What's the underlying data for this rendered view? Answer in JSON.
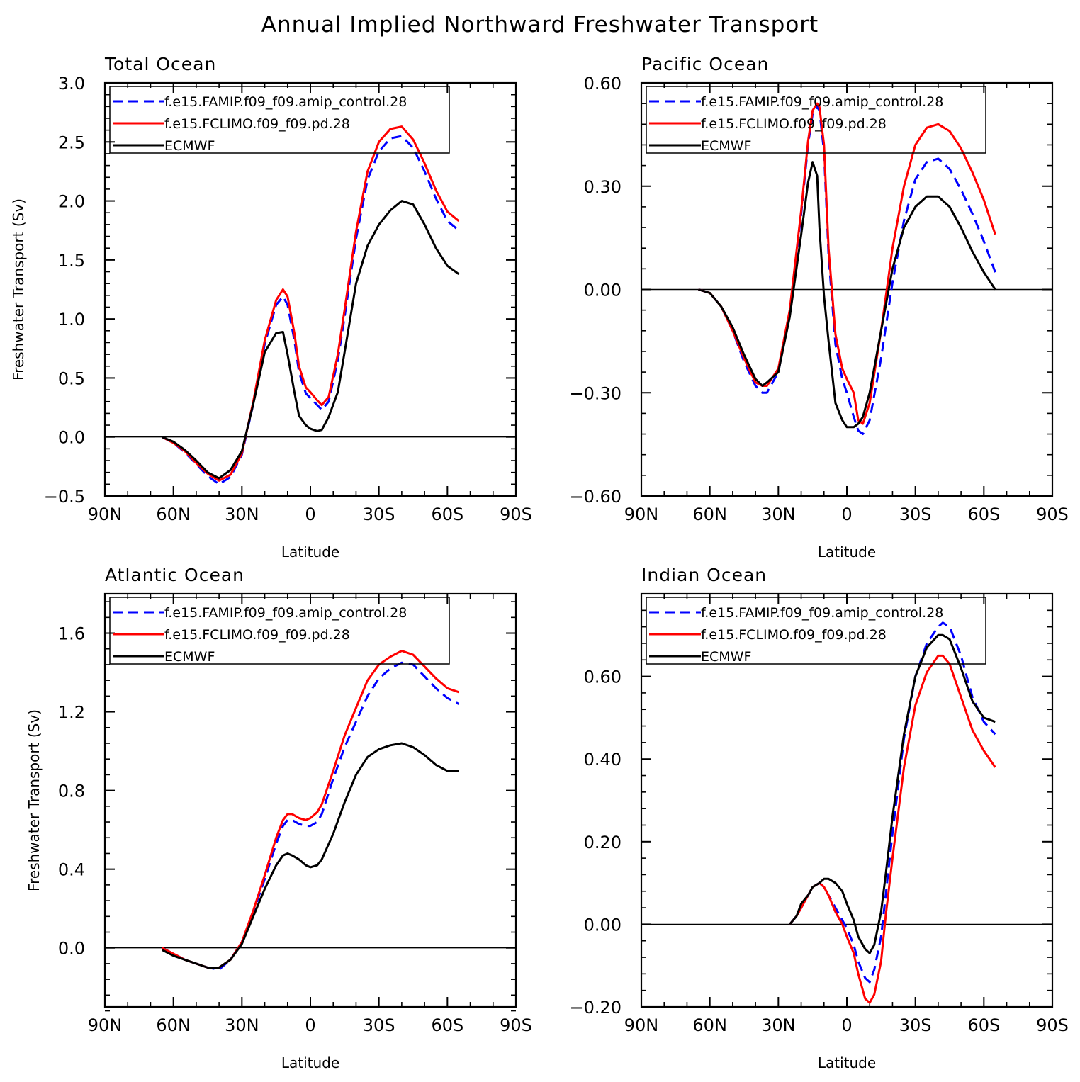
{
  "title": "Annual Implied Northward Freshwater Transport",
  "colors": {
    "amip": "#0000ff",
    "fclimo": "#ff0000",
    "ecmwf": "#000000"
  },
  "chart_data": [
    {
      "type": "line",
      "title": "Total Ocean",
      "xlabel": "Latitude",
      "ylabel": "Freshwater Transport (Sv)",
      "xlim": [
        90,
        -90
      ],
      "ylim": [
        -0.5,
        3.0
      ],
      "xticks": [
        90,
        60,
        30,
        0,
        -30,
        -60,
        -90
      ],
      "xtick_labels": [
        "90N",
        "60N",
        "30N",
        "0",
        "30S",
        "60S",
        "90S"
      ],
      "yticks": [
        -0.5,
        0.0,
        0.5,
        1.0,
        1.5,
        2.0,
        2.5,
        3.0
      ],
      "ytick_labels": [
        "-0.5",
        "0.0",
        "0.5",
        "1.0",
        "1.5",
        "2.0",
        "2.5",
        "3.0"
      ],
      "legend": "top-left",
      "series": [
        {
          "name": "f.e15.FAMIP.f09_f09.amip_control.28",
          "color": "#0000ff",
          "style": "dashed",
          "x": [
            65,
            60,
            55,
            50,
            45,
            40,
            35,
            30,
            25,
            20,
            15,
            12,
            10,
            7,
            5,
            2,
            0,
            -3,
            -5,
            -8,
            -12,
            -15,
            -20,
            -25,
            -30,
            -35,
            -40,
            -45,
            -50,
            -55,
            -60,
            -65
          ],
          "y": [
            0.0,
            -0.05,
            -0.13,
            -0.23,
            -0.33,
            -0.4,
            -0.34,
            -0.15,
            0.28,
            0.79,
            1.12,
            1.19,
            1.12,
            0.82,
            0.55,
            0.37,
            0.33,
            0.27,
            0.23,
            0.3,
            0.65,
            1.02,
            1.68,
            2.18,
            2.42,
            2.53,
            2.55,
            2.45,
            2.25,
            2.02,
            1.83,
            1.75
          ]
        },
        {
          "name": "f.e15.FCLIMO.f09_f09.pd.28",
          "color": "#ff0000",
          "style": "solid",
          "x": [
            65,
            60,
            55,
            50,
            45,
            40,
            35,
            30,
            25,
            20,
            15,
            12,
            10,
            7,
            5,
            2,
            0,
            -3,
            -5,
            -8,
            -12,
            -15,
            -20,
            -25,
            -30,
            -35,
            -40,
            -45,
            -50,
            -55,
            -60,
            -65
          ],
          "y": [
            0.0,
            -0.05,
            -0.12,
            -0.22,
            -0.31,
            -0.37,
            -0.32,
            -0.14,
            0.3,
            0.82,
            1.16,
            1.25,
            1.19,
            0.88,
            0.6,
            0.42,
            0.38,
            0.31,
            0.27,
            0.34,
            0.7,
            1.08,
            1.74,
            2.25,
            2.5,
            2.61,
            2.63,
            2.52,
            2.32,
            2.09,
            1.91,
            1.83
          ]
        },
        {
          "name": "ECMWF",
          "color": "#000000",
          "style": "solid",
          "x": [
            65,
            60,
            55,
            50,
            45,
            40,
            35,
            30,
            25,
            20,
            15,
            12,
            10,
            7,
            5,
            2,
            0,
            -3,
            -5,
            -8,
            -12,
            -15,
            -20,
            -25,
            -30,
            -35,
            -40,
            -45,
            -50,
            -55,
            -60,
            -65
          ],
          "y": [
            0.0,
            -0.04,
            -0.11,
            -0.2,
            -0.3,
            -0.35,
            -0.28,
            -0.12,
            0.28,
            0.72,
            0.88,
            0.89,
            0.7,
            0.38,
            0.18,
            0.1,
            0.07,
            0.05,
            0.06,
            0.17,
            0.38,
            0.72,
            1.3,
            1.62,
            1.8,
            1.92,
            2.0,
            1.97,
            1.8,
            1.6,
            1.45,
            1.38
          ]
        }
      ]
    },
    {
      "type": "line",
      "title": "Pacific Ocean",
      "xlabel": "Latitude",
      "ylabel": "",
      "xlim": [
        90,
        -90
      ],
      "ylim": [
        -0.6,
        0.6
      ],
      "xticks": [
        90,
        60,
        30,
        0,
        -30,
        -60,
        -90
      ],
      "xtick_labels": [
        "90N",
        "60N",
        "30N",
        "0",
        "30S",
        "60S",
        "90S"
      ],
      "yticks": [
        -0.6,
        -0.3,
        0.0,
        0.3,
        0.6
      ],
      "ytick_labels": [
        "-0.60",
        "-0.30",
        "0.00",
        "0.30",
        "0.60"
      ],
      "legend": "top-left",
      "series": [
        {
          "name": "f.e15.FAMIP.f09_f09.amip_control.28",
          "color": "#0000ff",
          "style": "dashed",
          "x": [
            65,
            60,
            55,
            50,
            45,
            40,
            37,
            35,
            30,
            25,
            20,
            17,
            15,
            13,
            12,
            10,
            8,
            5,
            2,
            0,
            -3,
            -5,
            -7,
            -10,
            -15,
            -20,
            -25,
            -30,
            -35,
            -40,
            -45,
            -50,
            -55,
            -60,
            -65
          ],
          "y": [
            0.0,
            -0.01,
            -0.05,
            -0.12,
            -0.21,
            -0.28,
            -0.3,
            -0.3,
            -0.24,
            -0.07,
            0.22,
            0.42,
            0.51,
            0.53,
            0.52,
            0.4,
            0.1,
            -0.16,
            -0.26,
            -0.3,
            -0.37,
            -0.41,
            -0.42,
            -0.38,
            -0.2,
            0.02,
            0.2,
            0.32,
            0.37,
            0.38,
            0.35,
            0.29,
            0.22,
            0.14,
            0.05
          ]
        },
        {
          "name": "f.e15.FCLIMO.f09_f09.pd.28",
          "color": "#ff0000",
          "style": "solid",
          "x": [
            65,
            60,
            55,
            50,
            45,
            40,
            37,
            35,
            30,
            25,
            20,
            17,
            15,
            13,
            12,
            10,
            8,
            5,
            2,
            0,
            -3,
            -5,
            -7,
            -10,
            -15,
            -20,
            -25,
            -30,
            -35,
            -40,
            -45,
            -50,
            -55,
            -60,
            -65
          ],
          "y": [
            0.0,
            -0.01,
            -0.05,
            -0.12,
            -0.2,
            -0.27,
            -0.28,
            -0.28,
            -0.23,
            -0.06,
            0.23,
            0.43,
            0.52,
            0.54,
            0.53,
            0.42,
            0.12,
            -0.13,
            -0.23,
            -0.26,
            -0.3,
            -0.38,
            -0.39,
            -0.33,
            -0.12,
            0.12,
            0.3,
            0.42,
            0.47,
            0.48,
            0.46,
            0.41,
            0.34,
            0.26,
            0.16
          ]
        },
        {
          "name": "ECMWF",
          "color": "#000000",
          "style": "solid",
          "x": [
            65,
            60,
            55,
            50,
            45,
            40,
            37,
            35,
            30,
            25,
            20,
            17,
            15,
            13,
            12,
            10,
            8,
            5,
            2,
            0,
            -3,
            -5,
            -7,
            -10,
            -15,
            -20,
            -25,
            -30,
            -35,
            -40,
            -45,
            -50,
            -55,
            -60,
            -65
          ],
          "y": [
            0.0,
            -0.01,
            -0.05,
            -0.11,
            -0.19,
            -0.26,
            -0.28,
            -0.27,
            -0.24,
            -0.08,
            0.16,
            0.31,
            0.37,
            0.33,
            0.18,
            -0.02,
            -0.15,
            -0.33,
            -0.38,
            -0.4,
            -0.4,
            -0.39,
            -0.37,
            -0.3,
            -0.12,
            0.06,
            0.18,
            0.24,
            0.27,
            0.27,
            0.24,
            0.18,
            0.11,
            0.05,
            0.0
          ]
        }
      ]
    },
    {
      "type": "line",
      "title": "Atlantic Ocean",
      "xlabel": "Latitude",
      "ylabel": "Freshwater Transport (Sv)",
      "xlim": [
        90,
        -90
      ],
      "ylim": [
        -0.3,
        1.8
      ],
      "xticks": [
        90,
        60,
        30,
        0,
        -30,
        -60,
        -90
      ],
      "xtick_labels": [
        "90N",
        "60N",
        "30N",
        "0",
        "30S",
        "60S",
        "90S"
      ],
      "yticks": [
        0.0,
        0.4,
        0.8,
        1.2,
        1.6
      ],
      "ytick_labels": [
        "0.0",
        "0.4",
        "0.8",
        "1.2",
        "1.6"
      ],
      "legend": "top-left",
      "series": [
        {
          "name": "f.e15.FAMIP.f09_f09.amip_control.28",
          "color": "#0000ff",
          "style": "dashed",
          "x": [
            65,
            60,
            55,
            50,
            45,
            40,
            35,
            30,
            25,
            20,
            15,
            12,
            10,
            8,
            5,
            2,
            0,
            -3,
            -5,
            -10,
            -15,
            -20,
            -25,
            -30,
            -35,
            -40,
            -45,
            -50,
            -55,
            -60,
            -65
          ],
          "y": [
            0.0,
            -0.03,
            -0.06,
            -0.08,
            -0.1,
            -0.11,
            -0.06,
            0.03,
            0.18,
            0.35,
            0.53,
            0.62,
            0.65,
            0.65,
            0.63,
            0.62,
            0.62,
            0.64,
            0.68,
            0.86,
            1.02,
            1.15,
            1.28,
            1.37,
            1.42,
            1.45,
            1.44,
            1.38,
            1.32,
            1.27,
            1.24
          ]
        },
        {
          "name": "f.e15.FCLIMO.f09_f09.pd.28",
          "color": "#ff0000",
          "style": "solid",
          "x": [
            65,
            60,
            55,
            50,
            45,
            40,
            35,
            30,
            25,
            20,
            15,
            12,
            10,
            8,
            5,
            2,
            0,
            -3,
            -5,
            -10,
            -15,
            -20,
            -25,
            -30,
            -35,
            -40,
            -45,
            -50,
            -55,
            -60,
            -65
          ],
          "y": [
            0.0,
            -0.03,
            -0.06,
            -0.08,
            -0.1,
            -0.1,
            -0.06,
            0.03,
            0.19,
            0.37,
            0.56,
            0.65,
            0.68,
            0.68,
            0.66,
            0.65,
            0.66,
            0.69,
            0.73,
            0.9,
            1.08,
            1.22,
            1.36,
            1.44,
            1.48,
            1.51,
            1.49,
            1.43,
            1.37,
            1.32,
            1.3
          ]
        },
        {
          "name": "ECMWF",
          "color": "#000000",
          "style": "solid",
          "x": [
            65,
            60,
            55,
            50,
            45,
            40,
            35,
            30,
            25,
            20,
            15,
            12,
            10,
            8,
            5,
            2,
            0,
            -3,
            -5,
            -10,
            -15,
            -20,
            -25,
            -30,
            -35,
            -40,
            -45,
            -50,
            -55,
            -60,
            -65
          ],
          "y": [
            -0.01,
            -0.04,
            -0.06,
            -0.08,
            -0.1,
            -0.1,
            -0.06,
            0.02,
            0.16,
            0.3,
            0.42,
            0.47,
            0.48,
            0.47,
            0.45,
            0.42,
            0.41,
            0.42,
            0.45,
            0.58,
            0.74,
            0.88,
            0.97,
            1.01,
            1.03,
            1.04,
            1.02,
            0.98,
            0.93,
            0.9,
            0.9
          ]
        }
      ]
    },
    {
      "type": "line",
      "title": "Indian Ocean",
      "xlabel": "Latitude",
      "ylabel": "",
      "xlim": [
        90,
        -90
      ],
      "ylim": [
        -0.2,
        0.8
      ],
      "xticks": [
        90,
        60,
        30,
        0,
        -30,
        -60,
        -90
      ],
      "xtick_labels": [
        "90N",
        "60N",
        "30N",
        "0",
        "30S",
        "60S",
        "90S"
      ],
      "yticks": [
        -0.2,
        0.0,
        0.2,
        0.4,
        0.6
      ],
      "ytick_labels": [
        "-0.20",
        "0.00",
        "0.20",
        "0.40",
        "0.60"
      ],
      "legend": "top-left",
      "series": [
        {
          "name": "f.e15.FAMIP.f09_f09.amip_control.28",
          "color": "#0000ff",
          "style": "dashed",
          "x": [
            25,
            22,
            20,
            17,
            15,
            12,
            10,
            8,
            5,
            2,
            0,
            -3,
            -5,
            -8,
            -10,
            -12,
            -15,
            -17,
            -20,
            -25,
            -30,
            -35,
            -40,
            -42,
            -45,
            -50,
            -55,
            -60,
            -65
          ],
          "y": [
            0.0,
            0.02,
            0.04,
            0.07,
            0.09,
            0.1,
            0.09,
            0.07,
            0.04,
            0.01,
            -0.01,
            -0.05,
            -0.09,
            -0.13,
            -0.14,
            -0.11,
            -0.03,
            0.07,
            0.22,
            0.45,
            0.6,
            0.68,
            0.72,
            0.73,
            0.72,
            0.65,
            0.55,
            0.49,
            0.46
          ]
        },
        {
          "name": "f.e15.FCLIMO.f09_f09.pd.28",
          "color": "#ff0000",
          "style": "solid",
          "x": [
            25,
            22,
            20,
            17,
            15,
            12,
            10,
            8,
            5,
            2,
            0,
            -3,
            -5,
            -8,
            -10,
            -12,
            -15,
            -17,
            -20,
            -25,
            -30,
            -35,
            -40,
            -42,
            -45,
            -50,
            -55,
            -60,
            -65
          ],
          "y": [
            0.0,
            0.02,
            0.04,
            0.07,
            0.09,
            0.1,
            0.09,
            0.07,
            0.03,
            0.0,
            -0.03,
            -0.07,
            -0.12,
            -0.18,
            -0.19,
            -0.17,
            -0.09,
            0.02,
            0.16,
            0.38,
            0.53,
            0.61,
            0.65,
            0.65,
            0.63,
            0.55,
            0.47,
            0.42,
            0.38
          ]
        },
        {
          "name": "ECMWF",
          "color": "#000000",
          "style": "solid",
          "x": [
            25,
            22,
            20,
            17,
            15,
            12,
            10,
            8,
            5,
            2,
            0,
            -3,
            -5,
            -8,
            -10,
            -12,
            -15,
            -17,
            -20,
            -25,
            -30,
            -35,
            -40,
            -42,
            -45,
            -50,
            -55,
            -60,
            -65
          ],
          "y": [
            0.0,
            0.02,
            0.05,
            0.07,
            0.09,
            0.1,
            0.11,
            0.11,
            0.1,
            0.08,
            0.05,
            0.01,
            -0.03,
            -0.06,
            -0.07,
            -0.05,
            0.03,
            0.12,
            0.26,
            0.46,
            0.6,
            0.67,
            0.7,
            0.7,
            0.69,
            0.62,
            0.54,
            0.5,
            0.49
          ]
        }
      ]
    }
  ]
}
